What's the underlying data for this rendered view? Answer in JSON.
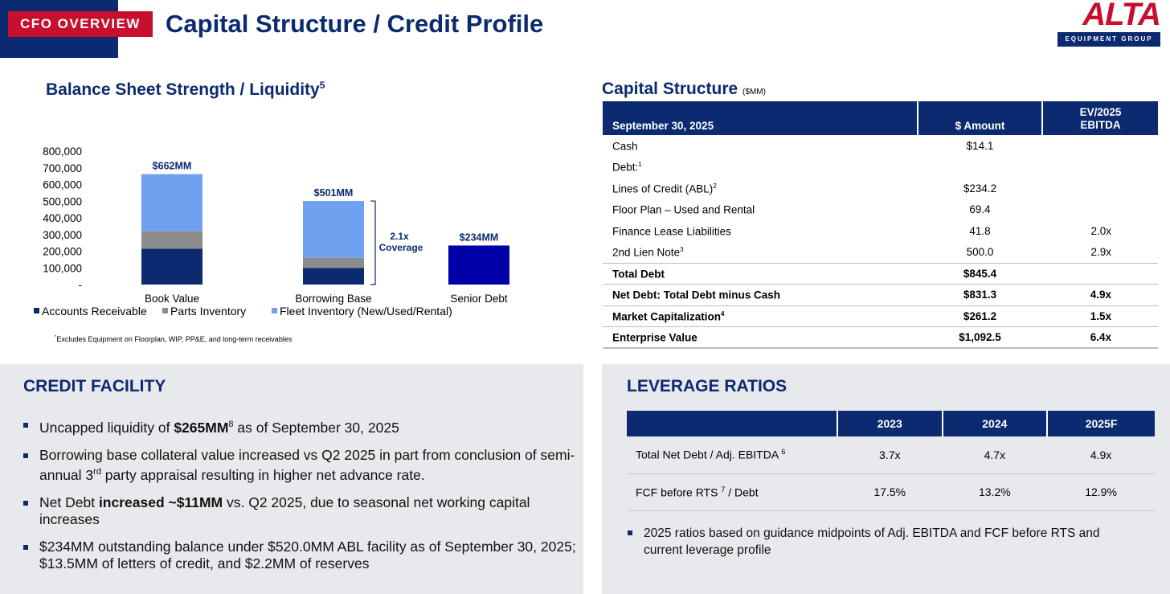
{
  "header": {
    "tag": "CFO OVERVIEW",
    "title": "Capital Structure / Credit Profile",
    "logo_text": "ALTA",
    "logo_sub": "EQUIPMENT GROUP"
  },
  "balance_sheet": {
    "title": "Balance Sheet Strength / Liquidity",
    "title_sup": "5",
    "coverage_label": "2.1x Coverage",
    "footnote_sup": "*",
    "footnote": "Excludes Equipment on Floorplan, WIP, PP&E, and long-term receivables"
  },
  "chart_data": {
    "type": "bar",
    "stacked": true,
    "categories": [
      "Book Value",
      "Borrowing Base",
      "Senior Debt"
    ],
    "series": [
      {
        "name": "Accounts Receivable",
        "color": "#0b2a6f",
        "values": [
          215000,
          100000,
          null
        ]
      },
      {
        "name": "Parts Inventory",
        "color": "#8c8c8c",
        "values": [
          105000,
          60000,
          null
        ]
      },
      {
        "name": "Fleet Inventory (New/Used/Rental)",
        "color": "#6fa1f0",
        "values": [
          342000,
          341000,
          null
        ]
      },
      {
        "name": "Senior Debt",
        "color": "#0000a8",
        "values": [
          null,
          null,
          234000
        ],
        "legend": false
      }
    ],
    "totals": [
      "$662MM",
      "$501MM",
      "$234MM"
    ],
    "y_ticks": [
      "-",
      "100,000",
      "200,000",
      "300,000",
      "400,000",
      "500,000",
      "600,000",
      "700,000",
      "800,000"
    ],
    "ylim": [
      0,
      800000
    ],
    "annotation": "2.1x Coverage",
    "legend_position": "bottom"
  },
  "capital_structure": {
    "title": "Capital Structure",
    "unit": "($MM)",
    "headers": {
      "col1": "September 30, 2025",
      "col2": "$ Amount",
      "col3a": "EV/2025",
      "col3b": "EBITDA"
    },
    "rows": [
      {
        "label": "Cash",
        "sup": "",
        "amount": "$14.1",
        "ratio": "",
        "bold": false
      },
      {
        "label": "Debt:",
        "sup": "1",
        "amount": "",
        "ratio": "",
        "bold": false
      },
      {
        "label": "Lines of Credit (ABL)",
        "sup": "2",
        "amount": "$234.2",
        "ratio": "",
        "bold": false
      },
      {
        "label": "Floor Plan – Used and Rental",
        "sup": "",
        "amount": "69.4",
        "ratio": "",
        "bold": false
      },
      {
        "label": "Finance Lease Liabilities",
        "sup": "",
        "amount": "41.8",
        "ratio": "2.0x",
        "bold": false
      },
      {
        "label": "2nd Lien Note",
        "sup": "3",
        "amount": "500.0",
        "ratio": "2.9x",
        "bold": false
      },
      {
        "label": "Total Debt",
        "sup": "",
        "amount": "$845.4",
        "ratio": "",
        "bold": true
      },
      {
        "label": "Net Debt: Total Debt minus Cash",
        "sup": "",
        "amount": "$831.3",
        "ratio": "4.9x",
        "bold": true
      },
      {
        "label": "Market Capitalization",
        "sup": "4",
        "amount": "$261.2",
        "ratio": "1.5x",
        "bold": true
      },
      {
        "label": "Enterprise Value",
        "sup": "",
        "amount": "$1,092.5",
        "ratio": "6.4x",
        "bold": true
      }
    ]
  },
  "credit_facility": {
    "title": "CREDIT FACILITY",
    "bullets": [
      {
        "a": "Uncapped liquidity of ",
        "b": "$265MM",
        "sup": "8",
        "c": " as of September 30, 2025"
      },
      {
        "a": "Borrowing base collateral value increased vs Q2 2025 in part from conclusion of semi-annual 3",
        "sup": "rd",
        "c": " party appraisal resulting in higher net advance rate."
      },
      {
        "a": "Net Debt ",
        "b": "increased ~$11MM",
        "c": " vs. Q2 2025, due to seasonal net working capital increases"
      },
      {
        "a": "$234MM outstanding balance under $520.0MM ABL facility as of September 30, 2025; $13.5MM of letters of credit, and $2.2MM of reserves"
      }
    ]
  },
  "leverage": {
    "title": "LEVERAGE RATIOS",
    "headers": [
      "",
      "2023",
      "2024",
      "2025F"
    ],
    "rows": [
      {
        "label": "Total Net Debt / Adj. EBITDA ",
        "sup": "6",
        "label_after": "",
        "values": [
          "3.7x",
          "4.7x",
          "4.9x"
        ]
      },
      {
        "label": "FCF before RTS ",
        "sup": "7",
        "label_after": " / Debt",
        "values": [
          "17.5%",
          "13.2%",
          "12.9%"
        ]
      }
    ],
    "bullet": "2025 ratios based on guidance midpoints of Adj. EBITDA and FCF before RTS and current leverage profile"
  }
}
